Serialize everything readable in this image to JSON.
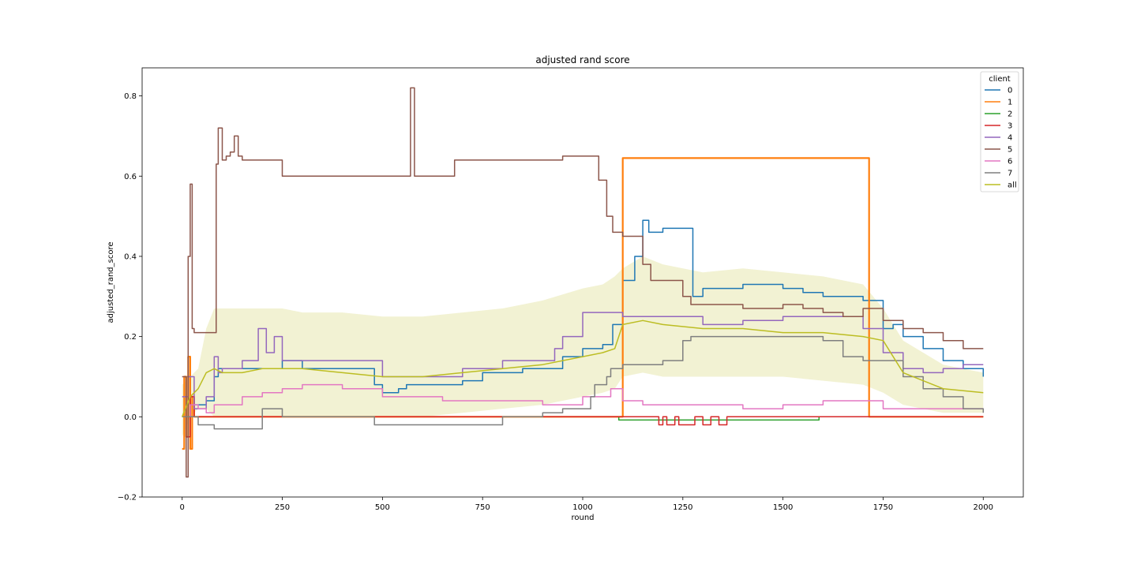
{
  "chart_data": {
    "type": "line",
    "title": "adjusted rand score",
    "xlabel": "round",
    "ylabel": "adjusted_rand_score",
    "xlim": [
      -100,
      2100
    ],
    "ylim": [
      -0.2,
      0.87
    ],
    "xticks": [
      0,
      250,
      500,
      750,
      1000,
      1250,
      1500,
      1750,
      2000
    ],
    "yticks": [
      -0.2,
      0.0,
      0.2,
      0.4,
      0.6,
      0.8
    ],
    "xtick_labels": [
      "0",
      "250",
      "500",
      "750",
      "1000",
      "1250",
      "1500",
      "1750",
      "2000"
    ],
    "ytick_labels": [
      "−0.2",
      "0.0",
      "0.2",
      "0.4",
      "0.6",
      "0.8"
    ],
    "grid": false,
    "legend": {
      "title": "client",
      "placement": "top-right"
    },
    "series": [
      {
        "name": "0",
        "color": "#1f77b4",
        "style": "step",
        "x": [
          0,
          10,
          20,
          30,
          60,
          80,
          90,
          110,
          250,
          300,
          400,
          450,
          480,
          500,
          520,
          540,
          560,
          600,
          650,
          700,
          750,
          800,
          850,
          900,
          950,
          1000,
          1050,
          1075,
          1100,
          1130,
          1150,
          1165,
          1200,
          1250,
          1275,
          1300,
          1350,
          1400,
          1450,
          1500,
          1550,
          1600,
          1650,
          1700,
          1750,
          1775,
          1800,
          1850,
          1875,
          1900,
          1950,
          2000
        ],
        "y": [
          0.0,
          0.1,
          0.03,
          0.03,
          0.04,
          0.1,
          0.12,
          0.12,
          0.14,
          0.12,
          0.12,
          0.12,
          0.08,
          0.06,
          0.06,
          0.07,
          0.08,
          0.08,
          0.08,
          0.09,
          0.11,
          0.11,
          0.12,
          0.12,
          0.15,
          0.17,
          0.18,
          0.23,
          0.34,
          0.4,
          0.49,
          0.46,
          0.47,
          0.47,
          0.3,
          0.32,
          0.32,
          0.33,
          0.33,
          0.32,
          0.31,
          0.3,
          0.3,
          0.29,
          0.22,
          0.23,
          0.2,
          0.17,
          0.17,
          0.14,
          0.12,
          0.1
        ]
      },
      {
        "name": "1",
        "color": "#ff7f0e",
        "style": "step",
        "x": [
          0,
          5,
          10,
          15,
          20,
          25,
          30,
          60,
          1095,
          1100,
          1710,
          1715,
          2000
        ],
        "y": [
          -0.08,
          0.1,
          -0.05,
          0.15,
          -0.08,
          0.05,
          0.0,
          0.0,
          0.0,
          0.645,
          0.645,
          0.0,
          0.0
        ]
      },
      {
        "name": "2",
        "color": "#2ca02c",
        "style": "step",
        "x": [
          0,
          1080,
          1090,
          1580,
          1590,
          2000
        ],
        "y": [
          0.0,
          0.0,
          -0.008,
          -0.008,
          0.0,
          0.0
        ]
      },
      {
        "name": "3",
        "color": "#d62728",
        "style": "step",
        "x": [
          0,
          10,
          20,
          30,
          1180,
          1190,
          1200,
          1210,
          1230,
          1240,
          1260,
          1280,
          1300,
          1320,
          1340,
          1360,
          2000
        ],
        "y": [
          0.0,
          -0.05,
          0.05,
          0.0,
          0.0,
          -0.02,
          0.0,
          -0.02,
          0.0,
          -0.02,
          -0.02,
          0.0,
          -0.02,
          0.0,
          -0.02,
          0.0,
          0.0
        ]
      },
      {
        "name": "4",
        "color": "#9467bd",
        "style": "step",
        "x": [
          0,
          15,
          30,
          60,
          80,
          90,
          100,
          150,
          190,
          210,
          230,
          250,
          300,
          400,
          450,
          500,
          600,
          700,
          800,
          880,
          930,
          950,
          1000,
          1050,
          1100,
          1200,
          1300,
          1400,
          1450,
          1500,
          1550,
          1600,
          1700,
          1750,
          1800,
          1850,
          1900,
          1950,
          2000
        ],
        "y": [
          0.05,
          0.1,
          0.02,
          0.05,
          0.15,
          0.11,
          0.12,
          0.14,
          0.22,
          0.16,
          0.2,
          0.14,
          0.14,
          0.14,
          0.14,
          0.1,
          0.1,
          0.12,
          0.14,
          0.14,
          0.17,
          0.2,
          0.26,
          0.26,
          0.25,
          0.25,
          0.23,
          0.24,
          0.24,
          0.25,
          0.25,
          0.25,
          0.22,
          0.16,
          0.12,
          0.11,
          0.12,
          0.13,
          0.13
        ]
      },
      {
        "name": "5",
        "color": "#8c564b",
        "style": "step",
        "x": [
          0,
          10,
          15,
          20,
          25,
          30,
          80,
          85,
          90,
          100,
          110,
          120,
          130,
          140,
          150,
          200,
          250,
          480,
          520,
          560,
          570,
          580,
          600,
          680,
          900,
          950,
          1000,
          1040,
          1060,
          1075,
          1100,
          1150,
          1170,
          1200,
          1250,
          1270,
          1300,
          1350,
          1400,
          1450,
          1500,
          1550,
          1600,
          1650,
          1700,
          1750,
          1800,
          1850,
          1900,
          1950,
          2000
        ],
        "y": [
          0.1,
          -0.15,
          0.4,
          0.58,
          0.22,
          0.21,
          0.21,
          0.63,
          0.72,
          0.64,
          0.65,
          0.66,
          0.7,
          0.65,
          0.64,
          0.64,
          0.6,
          0.6,
          0.6,
          0.6,
          0.82,
          0.6,
          0.6,
          0.64,
          0.64,
          0.65,
          0.65,
          0.59,
          0.5,
          0.46,
          0.45,
          0.38,
          0.34,
          0.34,
          0.3,
          0.28,
          0.28,
          0.28,
          0.27,
          0.27,
          0.28,
          0.27,
          0.26,
          0.25,
          0.27,
          0.24,
          0.22,
          0.21,
          0.19,
          0.17,
          0.17
        ]
      },
      {
        "name": "6",
        "color": "#e377c2",
        "style": "step",
        "x": [
          0,
          20,
          40,
          60,
          80,
          100,
          150,
          200,
          250,
          300,
          400,
          500,
          600,
          650,
          700,
          800,
          850,
          900,
          1000,
          1050,
          1070,
          1100,
          1150,
          1200,
          1300,
          1400,
          1500,
          1600,
          1700,
          1750,
          1800,
          1850,
          1900,
          1950,
          2000
        ],
        "y": [
          0.0,
          0.03,
          0.02,
          0.01,
          0.03,
          0.03,
          0.05,
          0.06,
          0.07,
          0.08,
          0.07,
          0.05,
          0.05,
          0.04,
          0.04,
          0.04,
          0.04,
          0.03,
          0.05,
          0.05,
          0.07,
          0.04,
          0.03,
          0.03,
          0.03,
          0.02,
          0.03,
          0.04,
          0.04,
          0.02,
          0.02,
          0.02,
          0.02,
          0.02,
          0.02
        ]
      },
      {
        "name": "7",
        "color": "#7f7f7f",
        "style": "step",
        "x": [
          0,
          40,
          80,
          130,
          160,
          200,
          250,
          480,
          600,
          800,
          900,
          950,
          1000,
          1020,
          1030,
          1050,
          1060,
          1070,
          1100,
          1150,
          1200,
          1240,
          1250,
          1270,
          1300,
          1400,
          1450,
          1600,
          1650,
          1700,
          1750,
          1800,
          1850,
          1900,
          1950,
          2000
        ],
        "y": [
          0.0,
          -0.02,
          -0.03,
          -0.03,
          -0.03,
          0.02,
          0.0,
          -0.02,
          -0.02,
          0.0,
          0.01,
          0.02,
          0.02,
          0.05,
          0.08,
          0.08,
          0.1,
          0.12,
          0.13,
          0.13,
          0.14,
          0.14,
          0.19,
          0.2,
          0.2,
          0.2,
          0.2,
          0.19,
          0.15,
          0.14,
          0.14,
          0.1,
          0.07,
          0.05,
          0.02,
          0.01
        ]
      },
      {
        "name": "all",
        "color": "#bcbd22",
        "style": "line",
        "x": [
          0,
          20,
          40,
          60,
          80,
          100,
          150,
          200,
          250,
          300,
          400,
          500,
          550,
          600,
          700,
          800,
          900,
          1000,
          1050,
          1080,
          1100,
          1150,
          1200,
          1300,
          1400,
          1500,
          1600,
          1700,
          1750,
          1800,
          1900,
          2000
        ],
        "y": [
          0.0,
          0.05,
          0.07,
          0.11,
          0.12,
          0.11,
          0.11,
          0.12,
          0.12,
          0.12,
          0.11,
          0.1,
          0.1,
          0.1,
          0.11,
          0.12,
          0.13,
          0.15,
          0.16,
          0.17,
          0.23,
          0.24,
          0.23,
          0.22,
          0.22,
          0.21,
          0.21,
          0.2,
          0.19,
          0.11,
          0.07,
          0.06
        ]
      }
    ],
    "band": {
      "series": "all",
      "color": "#bcbd22",
      "x": [
        0,
        20,
        40,
        60,
        80,
        100,
        150,
        200,
        250,
        300,
        400,
        500,
        550,
        600,
        700,
        800,
        900,
        1000,
        1050,
        1080,
        1100,
        1150,
        1200,
        1300,
        1400,
        1500,
        1600,
        1700,
        1750,
        1800,
        1900,
        2000
      ],
      "lower": [
        -0.05,
        0.0,
        0.02,
        0.02,
        0.0,
        0.0,
        0.0,
        0.0,
        0.0,
        0.0,
        0.0,
        0.0,
        0.0,
        0.0,
        0.01,
        0.02,
        0.03,
        0.05,
        0.06,
        0.07,
        0.1,
        0.11,
        0.1,
        0.1,
        0.1,
        0.1,
        0.09,
        0.08,
        0.06,
        0.03,
        0.01,
        0.01
      ],
      "upper": [
        0.08,
        0.1,
        0.12,
        0.22,
        0.27,
        0.27,
        0.27,
        0.27,
        0.27,
        0.26,
        0.26,
        0.25,
        0.25,
        0.25,
        0.26,
        0.27,
        0.29,
        0.32,
        0.33,
        0.35,
        0.37,
        0.4,
        0.38,
        0.36,
        0.37,
        0.36,
        0.35,
        0.33,
        0.27,
        0.19,
        0.13,
        0.11
      ]
    }
  }
}
